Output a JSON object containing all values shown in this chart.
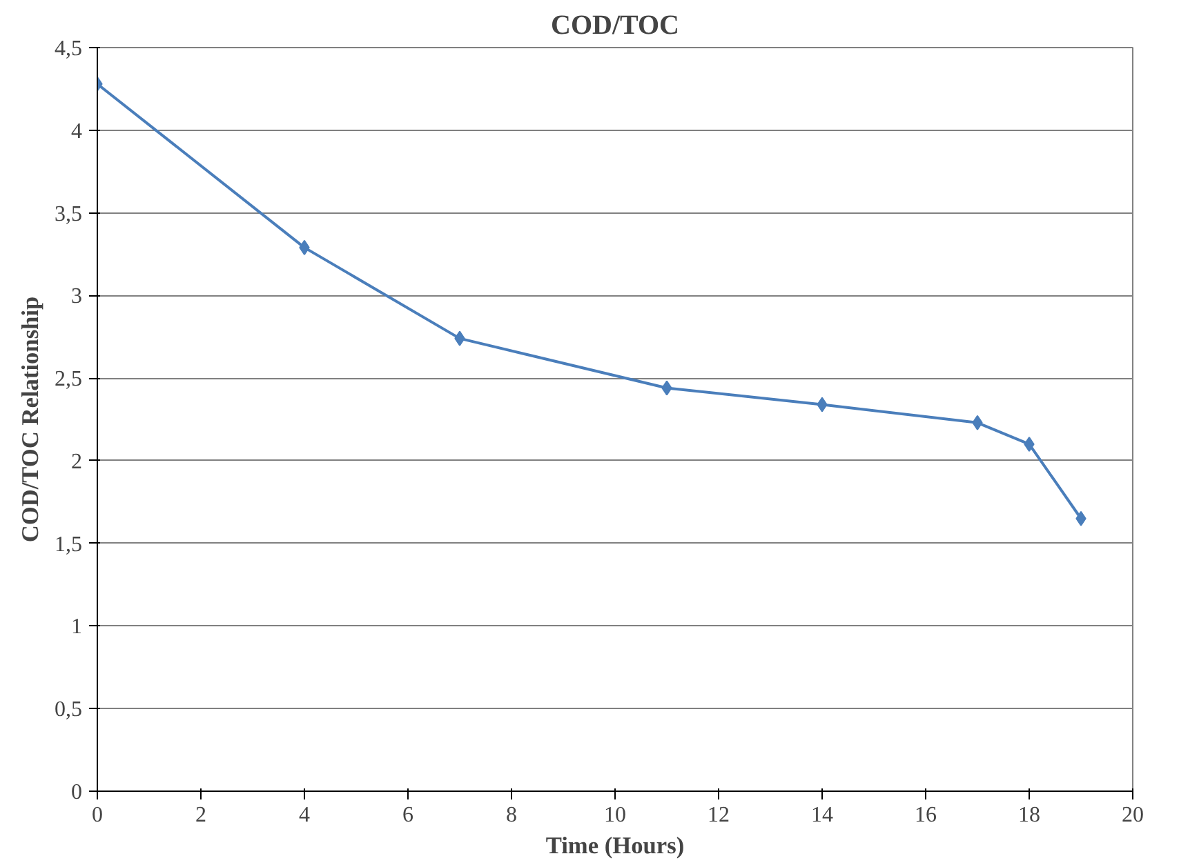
{
  "chart_data": {
    "type": "line",
    "title": "COD/TOC",
    "xlabel": "Time (Hours)",
    "ylabel": "COD/TOC Relationship",
    "x": [
      0,
      4,
      7,
      11,
      14,
      17,
      18,
      19
    ],
    "series": [
      {
        "color": "#4a7ebb",
        "values": [
          4.28,
          3.29,
          2.74,
          2.44,
          2.34,
          2.23,
          2.1,
          1.65
        ]
      }
    ],
    "xlim": [
      0,
      20
    ],
    "xticks": [
      0,
      2,
      4,
      6,
      8,
      10,
      12,
      14,
      16,
      18,
      20
    ],
    "ylim": [
      0,
      4.5
    ],
    "yticks": [
      0,
      {
        "value": 0.5,
        "label": "0,5"
      },
      1,
      {
        "value": 1.5,
        "label": "1,5"
      },
      2,
      {
        "value": 2.5,
        "label": "2,5"
      },
      3,
      {
        "value": 3.5,
        "label": "3,5"
      },
      4,
      {
        "value": 4.5,
        "label": "4,5"
      }
    ],
    "grid": "y",
    "marker": "diamond",
    "line_style": "solid"
  }
}
